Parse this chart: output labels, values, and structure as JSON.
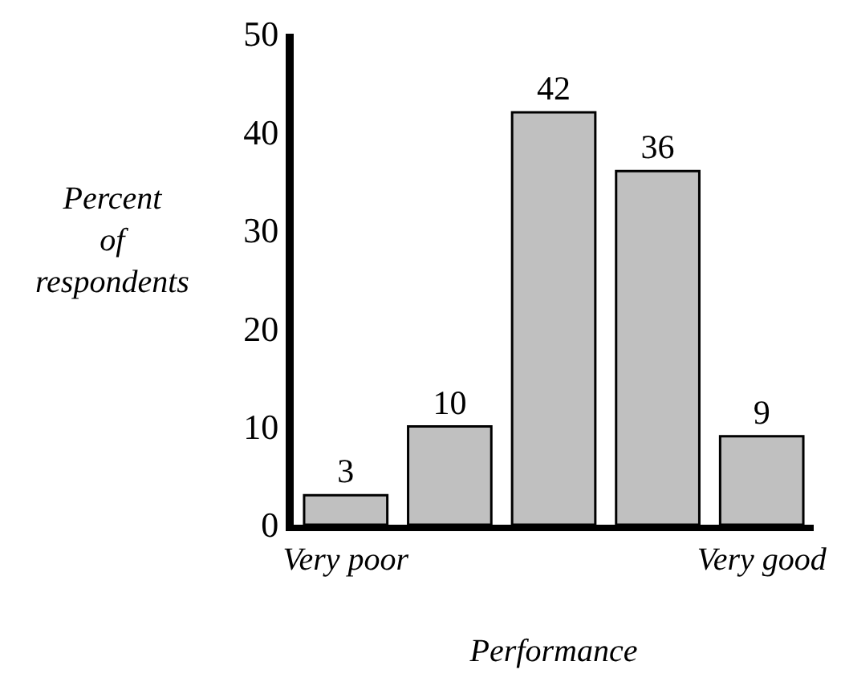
{
  "chart_data": {
    "type": "bar",
    "categories": [
      "Very poor",
      null,
      null,
      null,
      "Very good"
    ],
    "values": [
      3,
      10,
      42,
      36,
      9
    ],
    "color": "#c0c0c0",
    "ylim": [
      0,
      50
    ],
    "yticks": [
      0,
      10,
      20,
      30,
      40,
      50
    ],
    "ylabel": "Percent of respondents",
    "xlabel": "Performance",
    "data_labels": true
  }
}
